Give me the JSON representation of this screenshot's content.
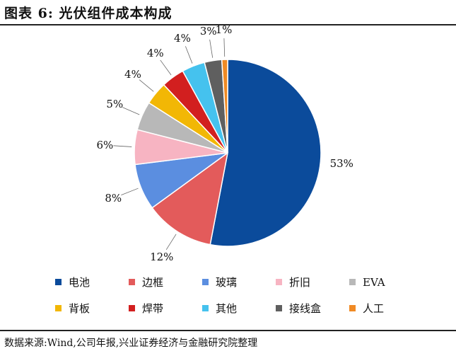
{
  "title": "图表 6:  光伏组件成本构成",
  "source": "数据来源:Wind,公司年报,兴业证券经济与金融研究院整理",
  "chart_data": {
    "type": "pie",
    "title": "",
    "legend_placement": "bottom",
    "slices": [
      {
        "name": "电池",
        "value": 53,
        "label": "53%",
        "color": "#0b4b9b"
      },
      {
        "name": "边框",
        "value": 12,
        "label": "12%",
        "color": "#e35b5b"
      },
      {
        "name": "玻璃",
        "value": 8,
        "label": "8%",
        "color": "#5b8ee0"
      },
      {
        "name": "折旧",
        "value": 6,
        "label": "6%",
        "color": "#f7b4c2"
      },
      {
        "name": "EVA",
        "value": 5,
        "label": "5%",
        "color": "#b8b8b8"
      },
      {
        "name": "背板",
        "value": 4,
        "label": "4%",
        "color": "#f2b705"
      },
      {
        "name": "焊带",
        "value": 4,
        "label": "4%",
        "color": "#d21f1f"
      },
      {
        "name": "其他",
        "value": 4,
        "label": "4%",
        "color": "#45c2ee"
      },
      {
        "name": "接线盒",
        "value": 3,
        "label": "3%",
        "color": "#5f5f5f"
      },
      {
        "name": "人工",
        "value": 1,
        "label": "1%",
        "color": "#f08a24"
      }
    ]
  }
}
